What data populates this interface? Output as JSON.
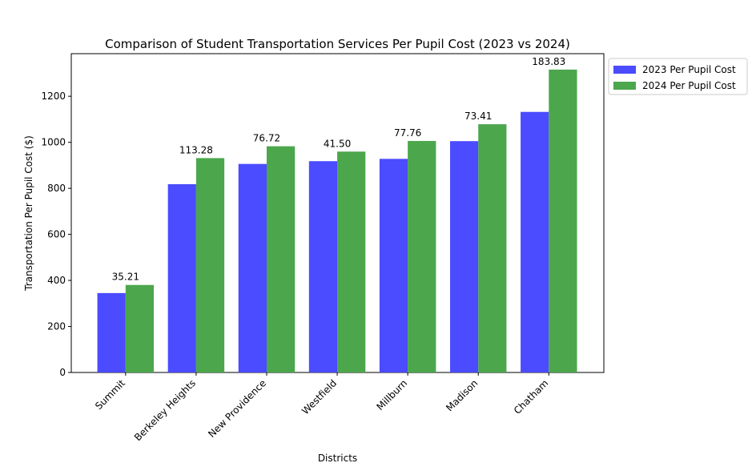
{
  "chart_data": {
    "type": "bar",
    "title": "Comparison of Student Transportation Services Per Pupil Cost (2023 vs 2024)",
    "xlabel": "Districts",
    "ylabel": "Transportation Per Pupil Cost ($)",
    "categories": [
      "Summit",
      "Berkeley Heights",
      "New Providence",
      "Westfield",
      "Millburn",
      "Madison",
      "Chatham"
    ],
    "series": [
      {
        "name": "2023 Per Pupil Cost",
        "color": "#4b4bff",
        "values": [
          345,
          818,
          906,
          918,
          928,
          1005,
          1132
        ]
      },
      {
        "name": "2024 Per Pupil Cost",
        "color": "#4ca64c",
        "values": [
          380.21,
          931.28,
          982.72,
          959.5,
          1005.76,
          1078.41,
          1315.83
        ]
      }
    ],
    "difference_labels": [
      "35.21",
      "113.28",
      "76.72",
      "41.50",
      "77.76",
      "73.41",
      "183.83"
    ],
    "ylim": [
      0,
      1385
    ],
    "yticks": [
      0,
      200,
      400,
      600,
      800,
      1000,
      1200
    ],
    "legend_position": "upper-right-outside"
  }
}
